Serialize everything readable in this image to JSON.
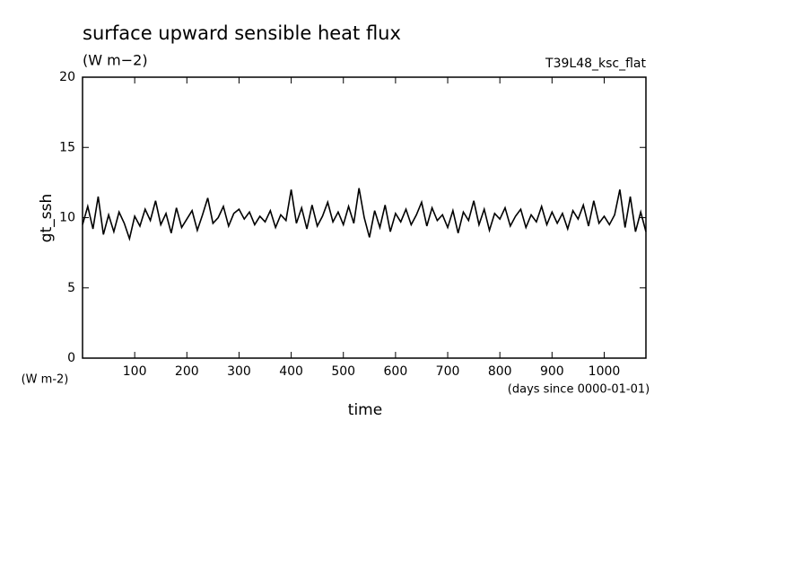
{
  "chart_data": {
    "type": "line",
    "title": "surface upward sensible heat flux",
    "subtitle": "(W m−2)",
    "annotation": "T39L48_ksc_flat",
    "ylabel": "gt_ssh",
    "yunit": "(W m-2)",
    "xlabel": "time",
    "xunit": "(days since 0000-01-01)",
    "xlim": [
      0,
      1080
    ],
    "ylim": [
      0,
      20
    ],
    "xticks": [
      100,
      200,
      300,
      400,
      500,
      600,
      700,
      800,
      900,
      1000
    ],
    "yticks": [
      0,
      5,
      10,
      15,
      20
    ],
    "x": [
      0,
      10,
      20,
      30,
      40,
      50,
      60,
      70,
      80,
      90,
      100,
      110,
      120,
      130,
      140,
      150,
      160,
      170,
      180,
      190,
      200,
      210,
      220,
      230,
      240,
      250,
      260,
      270,
      280,
      290,
      300,
      310,
      320,
      330,
      340,
      350,
      360,
      370,
      380,
      390,
      400,
      410,
      420,
      430,
      440,
      450,
      460,
      470,
      480,
      490,
      500,
      510,
      520,
      530,
      540,
      550,
      560,
      570,
      580,
      590,
      600,
      610,
      620,
      630,
      640,
      650,
      660,
      670,
      680,
      690,
      700,
      710,
      720,
      730,
      740,
      750,
      760,
      770,
      780,
      790,
      800,
      810,
      820,
      830,
      840,
      850,
      860,
      870,
      880,
      890,
      900,
      910,
      920,
      930,
      940,
      950,
      960,
      970,
      980,
      990,
      1000,
      1010,
      1020,
      1030,
      1040,
      1050,
      1060,
      1070,
      1080
    ],
    "series": [
      {
        "name": "gt_ssh",
        "color": "#000000",
        "values": [
          9.5,
          10.8,
          9.2,
          11.5,
          8.8,
          10.2,
          9.0,
          10.4,
          9.6,
          8.5,
          10.1,
          9.4,
          10.6,
          9.8,
          11.2,
          9.5,
          10.3,
          8.9,
          10.7,
          9.3,
          9.9,
          10.5,
          9.1,
          10.2,
          11.4,
          9.6,
          10.0,
          10.8,
          9.4,
          10.3,
          10.6,
          9.9,
          10.4,
          9.5,
          10.1,
          9.7,
          10.5,
          9.3,
          10.2,
          9.8,
          12.0,
          9.6,
          10.7,
          9.2,
          10.9,
          9.4,
          10.1,
          11.1,
          9.7,
          10.4,
          9.5,
          10.8,
          9.6,
          12.1,
          10.0,
          8.6,
          10.5,
          9.3,
          10.9,
          9.0,
          10.3,
          9.7,
          10.6,
          9.5,
          10.2,
          11.1,
          9.4,
          10.7,
          9.8,
          10.2,
          9.3,
          10.5,
          8.9,
          10.4,
          9.8,
          11.2,
          9.5,
          10.6,
          9.1,
          10.3,
          9.9,
          10.7,
          9.4,
          10.1,
          10.6,
          9.3,
          10.2,
          9.7,
          10.8,
          9.5,
          10.4,
          9.6,
          10.3,
          9.2,
          10.5,
          9.9,
          10.9,
          9.4,
          11.2,
          9.6,
          10.1,
          9.5,
          10.2,
          12.0,
          9.3,
          11.5,
          9.0,
          10.4,
          9.0
        ]
      }
    ]
  }
}
